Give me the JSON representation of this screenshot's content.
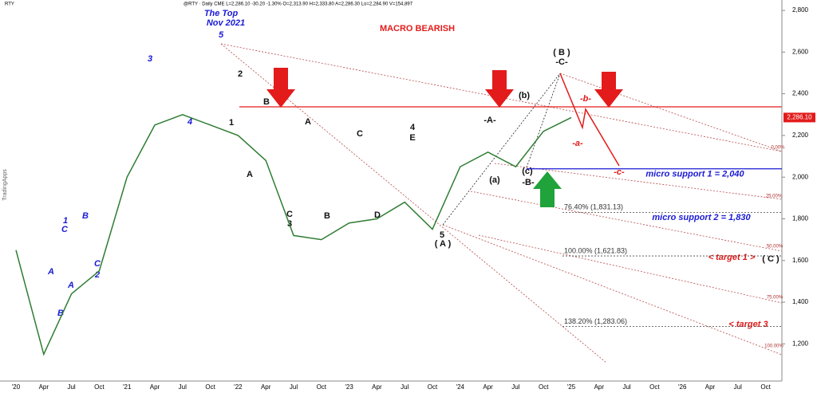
{
  "chart_data": {
    "type": "line",
    "header": "@RTY · Daily  CME  L=2,286.10  -30.20  -1.30%  O=2,313.90  H=2,333.80  A=2,286.30  Lo=2,284.90  V=154,897",
    "title": "MACRO BEARISH",
    "watermark": "TradingApps",
    "categories": [
      "'20",
      "Apr",
      "Jul",
      "Oct",
      "'21",
      "Apr",
      "Jul",
      "Oct",
      "'22",
      "Apr",
      "Jul",
      "Oct",
      "'23",
      "Apr",
      "Jul",
      "Oct",
      "'24",
      "Apr",
      "Jul",
      "Oct",
      "'25",
      "Apr",
      "Jul",
      "Oct",
      "'26",
      "Apr",
      "Jul",
      "Oct"
    ],
    "series": [
      {
        "name": "RTY",
        "color": "#2e7d32",
        "values": [
          1650,
          1150,
          1440,
          1550,
          2000,
          2250,
          2300,
          2250,
          2200,
          2080,
          1720,
          1700,
          1780,
          1800,
          1880,
          1750,
          2050,
          2120,
          2050,
          2220,
          2286.1,
          null,
          null,
          null,
          null,
          null,
          null,
          null
        ]
      }
    ],
    "last_price": {
      "value": 2286.1,
      "label": "2,286.10"
    },
    "ylim": [
      1010,
      2850
    ],
    "yticks": [
      {
        "value": 1200,
        "label": "1,200"
      },
      {
        "value": 1400,
        "label": "1,400"
      },
      {
        "value": 1600,
        "label": "1,600"
      },
      {
        "value": 1800,
        "label": "1,800"
      },
      {
        "value": 2000,
        "label": "2,000"
      },
      {
        "value": 2200,
        "label": "2,200"
      },
      {
        "value": 2400,
        "label": "2,400"
      },
      {
        "value": 2600,
        "label": "2,600"
      },
      {
        "value": 2800,
        "label": "2,800"
      }
    ],
    "levels": [
      {
        "value": 1831.13,
        "label": "76.40% (1,831.13)"
      },
      {
        "value": 1621.83,
        "label": "100.00% (1,621.83)"
      },
      {
        "value": 1283.06,
        "label": "138.20% (1,283.06)"
      }
    ],
    "support": {
      "value": 2040,
      "label": "micro support 1 = 2,040"
    },
    "annotations": [
      "The Top",
      "Nov 2021",
      "5",
      "3",
      "4",
      "1",
      "2",
      "B",
      "A",
      "A",
      "C",
      "3",
      "B",
      "C",
      "D",
      "4",
      "E",
      "5",
      "( A )",
      "-A-",
      "(b)",
      "(a)",
      "(c)",
      "-B-",
      "( B )",
      "-C-",
      "-b-",
      "-a-",
      "-c-",
      "1",
      "C",
      "A",
      "A",
      "B",
      "B",
      "C",
      "2",
      "micro support 2 = 1,830",
      "< target 1 >",
      "( C )",
      "< target 3",
      "0.00%",
      "25.00%",
      "50.00%",
      "75.00%",
      "100.00%"
    ]
  }
}
